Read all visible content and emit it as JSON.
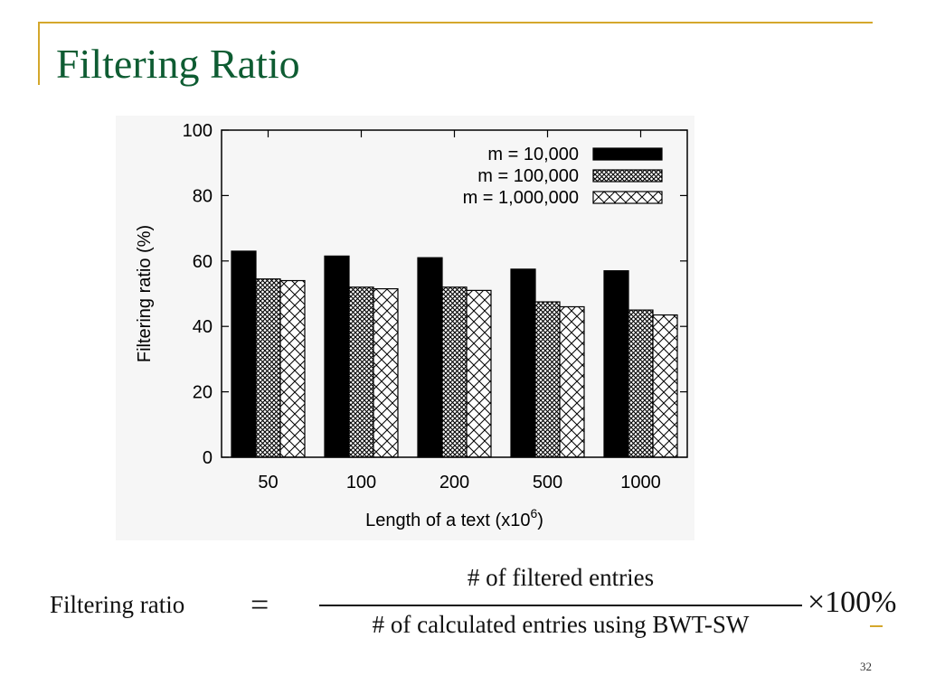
{
  "slide": {
    "title": "Filtering Ratio",
    "page_number": "32"
  },
  "formula": {
    "lhs": "Filtering ratio",
    "equals": "=",
    "numerator": "# of filtered entries",
    "denominator": "# of calculated entries using BWT-SW",
    "multiplier": "×100%"
  },
  "colors": {
    "title": "#0e5c32",
    "accent_line": "#d4a72c",
    "bars": "#000000"
  },
  "chart_data": {
    "type": "bar",
    "categories": [
      "50",
      "100",
      "200",
      "500",
      "1000"
    ],
    "series": [
      {
        "name": "m = 10,000",
        "pattern": "solid",
        "values": [
          63,
          61.5,
          61,
          57.5,
          57
        ]
      },
      {
        "name": "m = 100,000",
        "pattern": "fine-crosshatch",
        "values": [
          54.5,
          52,
          52,
          47.5,
          45
        ]
      },
      {
        "name": "m = 1,000,000",
        "pattern": "coarse-crosshatch",
        "values": [
          54,
          51.5,
          51,
          46,
          43.5
        ]
      }
    ],
    "xlabel": "Length of a text (x10",
    "xlabel_superscript": "6",
    "xlabel_suffix": ")",
    "ylabel": "Filtering ratio (%)",
    "ylim": [
      0,
      100
    ],
    "yticks": [
      "0",
      "20",
      "40",
      "60",
      "80",
      "100"
    ],
    "grid": false,
    "legend_position": "top-right"
  }
}
